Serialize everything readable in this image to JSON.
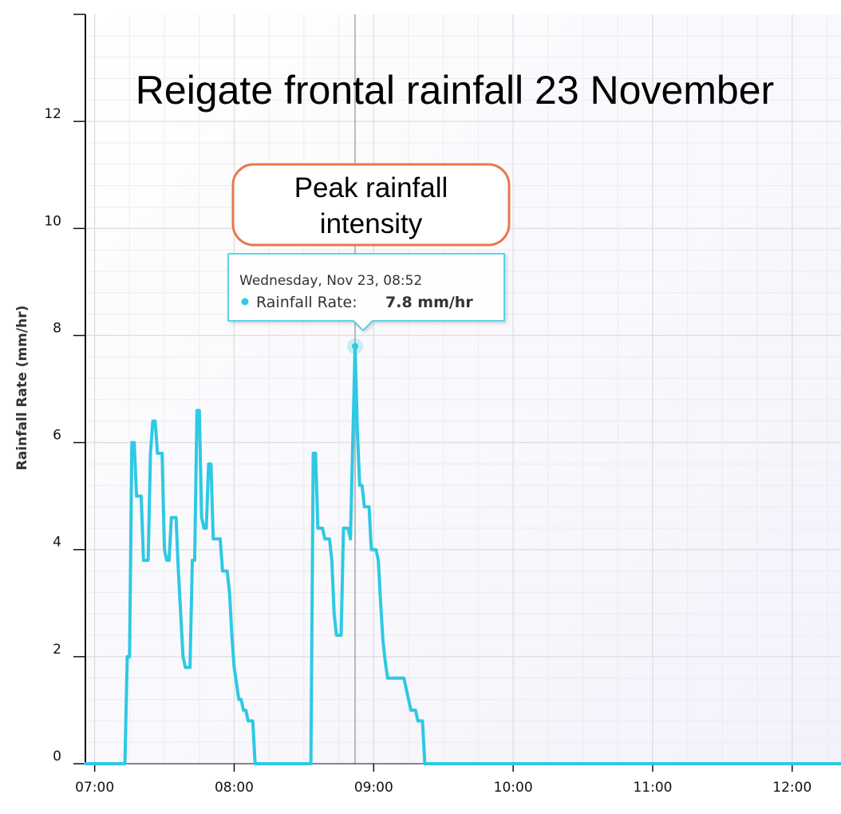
{
  "chart_data": {
    "type": "line",
    "title": "Reigate frontal rainfall 23 November",
    "xlabel": "",
    "ylabel": "Rainfall Rate (mm/hr)",
    "x_unit": "minutes since 00:00",
    "xlim": [
      416,
      741
    ],
    "ylim": [
      0,
      14
    ],
    "y_ticks": [
      0,
      2,
      4,
      6,
      8,
      10,
      12
    ],
    "x_ticks": [
      {
        "value": 420,
        "label": "07:00"
      },
      {
        "value": 480,
        "label": "08:00"
      },
      {
        "value": 540,
        "label": "09:00"
      },
      {
        "value": 600,
        "label": "10:00"
      },
      {
        "value": 660,
        "label": "11:00"
      },
      {
        "value": 720,
        "label": "12:00"
      }
    ],
    "series": [
      {
        "name": "Rainfall Rate",
        "color": "#2ec9e3",
        "points": [
          [
            416,
            0
          ],
          [
            433,
            0
          ],
          [
            434,
            2
          ],
          [
            435,
            2
          ],
          [
            436,
            6
          ],
          [
            437,
            6
          ],
          [
            438,
            5
          ],
          [
            440,
            5
          ],
          [
            441,
            3.8
          ],
          [
            443,
            3.8
          ],
          [
            444,
            5.8
          ],
          [
            445,
            6.4
          ],
          [
            446,
            6.4
          ],
          [
            447,
            5.8
          ],
          [
            449,
            5.8
          ],
          [
            450,
            4
          ],
          [
            451,
            3.8
          ],
          [
            452,
            3.8
          ],
          [
            453,
            4.6
          ],
          [
            455,
            4.6
          ],
          [
            456,
            3.6
          ],
          [
            457,
            2.8
          ],
          [
            458,
            2
          ],
          [
            459,
            1.8
          ],
          [
            461,
            1.8
          ],
          [
            462,
            3.8
          ],
          [
            463,
            3.8
          ],
          [
            464,
            6.6
          ],
          [
            465,
            6.6
          ],
          [
            466,
            4.6
          ],
          [
            467,
            4.4
          ],
          [
            468,
            4.4
          ],
          [
            469,
            5.6
          ],
          [
            470,
            5.6
          ],
          [
            471,
            4.2
          ],
          [
            474,
            4.2
          ],
          [
            475,
            3.6
          ],
          [
            477,
            3.6
          ],
          [
            478,
            3.2
          ],
          [
            479,
            2.4
          ],
          [
            480,
            1.8
          ],
          [
            481,
            1.5
          ],
          [
            482,
            1.2
          ],
          [
            483,
            1.2
          ],
          [
            484,
            1
          ],
          [
            485,
            1
          ],
          [
            486,
            0.8
          ],
          [
            488,
            0.8
          ],
          [
            489,
            0
          ],
          [
            513,
            0
          ],
          [
            514,
            5.8
          ],
          [
            515,
            5.8
          ],
          [
            516,
            4.4
          ],
          [
            518,
            4.4
          ],
          [
            519,
            4.2
          ],
          [
            521,
            4.2
          ],
          [
            522,
            3.8
          ],
          [
            523,
            2.8
          ],
          [
            524,
            2.4
          ],
          [
            526,
            2.4
          ],
          [
            527,
            4.4
          ],
          [
            529,
            4.4
          ],
          [
            530,
            4.2
          ],
          [
            531,
            6
          ],
          [
            532,
            7.8
          ],
          [
            533,
            6.2
          ],
          [
            534,
            5.2
          ],
          [
            535,
            5.2
          ],
          [
            536,
            4.8
          ],
          [
            538,
            4.8
          ],
          [
            539,
            4
          ],
          [
            541,
            4
          ],
          [
            542,
            3.8
          ],
          [
            543,
            3
          ],
          [
            544,
            2.3
          ],
          [
            545,
            1.9
          ],
          [
            546,
            1.6
          ],
          [
            553,
            1.6
          ],
          [
            554,
            1.4
          ],
          [
            555,
            1.2
          ],
          [
            556,
            1
          ],
          [
            558,
            1
          ],
          [
            559,
            0.8
          ],
          [
            561,
            0.8
          ],
          [
            562,
            0
          ],
          [
            741,
            0
          ]
        ]
      }
    ],
    "annotations": [
      {
        "text_lines": [
          "Peak rainfall",
          "intensity"
        ],
        "border_color": "#e9774a"
      }
    ],
    "highlight": {
      "x": 532,
      "y": 7.8
    }
  },
  "tooltip": {
    "date": "Wednesday, Nov 23, 08:52",
    "series_label": "Rainfall Rate:",
    "value": "7.8 mm/hr"
  },
  "colors": {
    "line": "#2ec9e3",
    "tooltip_border": "#2ec9e3",
    "callout_border": "#e9774a",
    "grid": "#e6e6e6",
    "crosshair": "#a6a6a6"
  }
}
